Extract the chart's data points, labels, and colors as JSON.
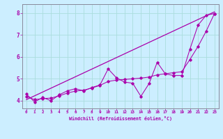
{
  "xlabel": "Windchill (Refroidissement éolien,°C)",
  "bg_color": "#cceeff",
  "grid_color": "#aadddd",
  "line_color": "#aa00aa",
  "xlim": [
    -0.5,
    23.5
  ],
  "ylim": [
    3.65,
    8.4
  ],
  "yticks": [
    4,
    5,
    6,
    7,
    8
  ],
  "xticks": [
    0,
    1,
    2,
    3,
    4,
    5,
    6,
    7,
    8,
    9,
    10,
    11,
    12,
    13,
    14,
    15,
    16,
    17,
    18,
    19,
    20,
    21,
    22,
    23
  ],
  "jagged_x": [
    0,
    1,
    2,
    3,
    4,
    5,
    6,
    7,
    8,
    9,
    10,
    11,
    12,
    13,
    14,
    15,
    16,
    17,
    18,
    19,
    20,
    21,
    22,
    23
  ],
  "jagged_y": [
    4.3,
    3.95,
    4.15,
    4.0,
    4.27,
    4.45,
    4.55,
    4.45,
    4.6,
    4.72,
    5.45,
    5.05,
    4.85,
    4.8,
    4.2,
    4.78,
    5.75,
    5.22,
    5.15,
    5.15,
    6.35,
    7.45,
    7.9,
    7.97
  ],
  "smooth_x": [
    0,
    1,
    2,
    3,
    4,
    5,
    6,
    7,
    8,
    9,
    10,
    11,
    12,
    13,
    14,
    15,
    16,
    17,
    18,
    19,
    20,
    21,
    22,
    23
  ],
  "smooth_y": [
    4.2,
    4.05,
    4.1,
    4.12,
    4.22,
    4.35,
    4.44,
    4.48,
    4.58,
    4.7,
    4.88,
    4.94,
    4.97,
    5.0,
    5.03,
    5.08,
    5.18,
    5.23,
    5.28,
    5.32,
    5.88,
    6.48,
    7.18,
    7.97
  ],
  "trend_x": [
    0,
    23
  ],
  "trend_y": [
    4.05,
    8.05
  ]
}
